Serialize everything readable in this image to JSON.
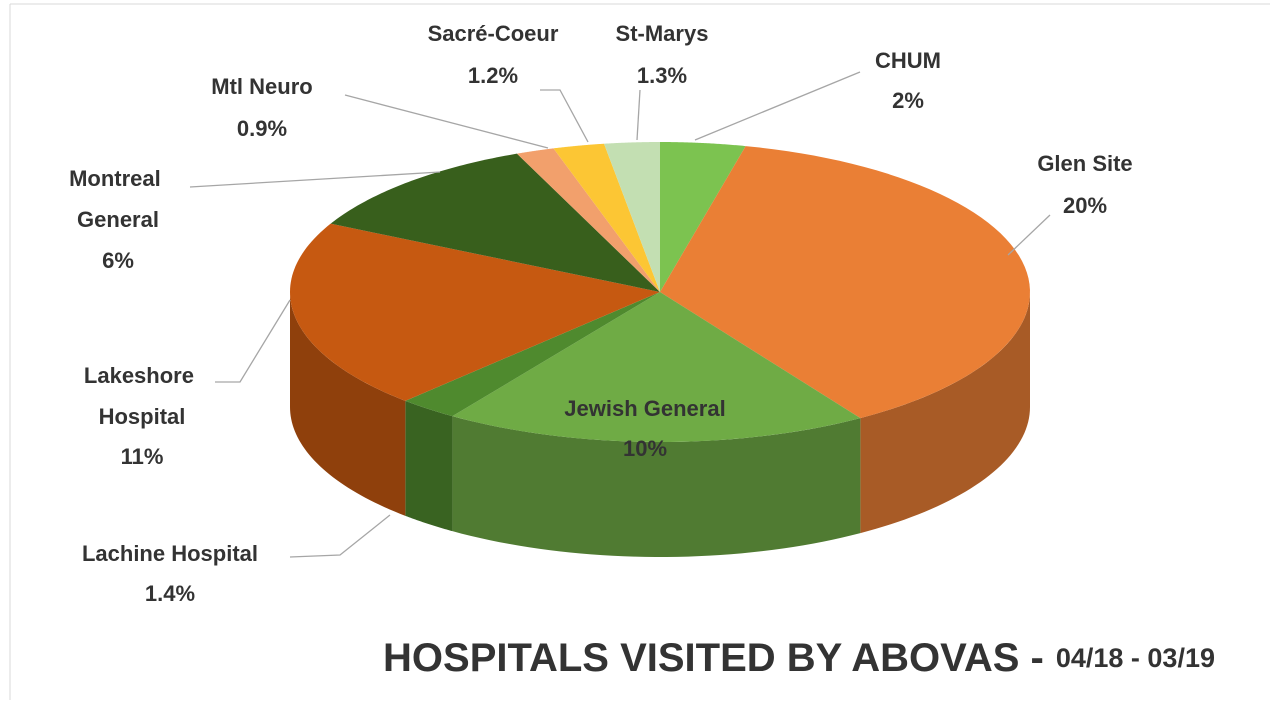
{
  "chart_data": {
    "type": "pie",
    "title": "HOSPITALS VISITED BY ABOVAS -",
    "subtitle": "04/18 - 03/19",
    "categories": [
      "CHUM",
      "Glen Site",
      "Jewish General",
      "Lachine Hospital",
      "Lakeshore Hospital",
      "Montreal General",
      "Mtl Neuro",
      "Sacré-Coeur",
      "St-Marys"
    ],
    "values": [
      2,
      20,
      10,
      1.4,
      11,
      6,
      0.9,
      1.2,
      1.3
    ],
    "value_labels": [
      "2%",
      "20%",
      "10%",
      "1.4%",
      "11%",
      "6%",
      "0.9%",
      "1.2%",
      "1.3%"
    ],
    "colors": [
      "#7cc350",
      "#ea7f35",
      "#6fab45",
      "#4f8a2e",
      "#c65911",
      "#385f1c",
      "#f2a06c",
      "#fcc634",
      "#c3dfb2"
    ]
  }
}
